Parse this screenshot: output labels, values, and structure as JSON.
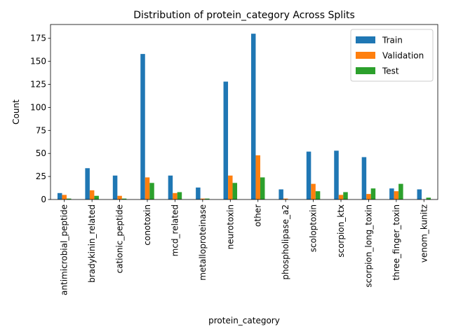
{
  "chart_data": {
    "type": "bar",
    "title": "Distribution of protein_category Across Splits",
    "xlabel": "protein_category",
    "ylabel": "Count",
    "ylim": [
      0,
      190
    ],
    "yticks": [
      0,
      25,
      50,
      75,
      100,
      125,
      150,
      175
    ],
    "legend_position": "top-right",
    "grid": false,
    "categories": [
      "antimicrobial_peptide",
      "bradykinin_related",
      "cationic_peptide",
      "conotoxin",
      "mcd_related",
      "metalloproteinase",
      "neurotoxin",
      "other",
      "phospholipase_a2",
      "scoloptoxin",
      "scorpion_ktx",
      "scorpion_long_toxin",
      "three_finger_toxin",
      "venom_kunitz"
    ],
    "series": [
      {
        "name": "Train",
        "color": "#1f77b4",
        "values": [
          7,
          34,
          26,
          158,
          26,
          13,
          128,
          180,
          11,
          52,
          53,
          46,
          12,
          11
        ]
      },
      {
        "name": "Validation",
        "color": "#ff7f0e",
        "values": [
          5,
          10,
          4,
          24,
          7,
          1,
          26,
          48,
          1,
          17,
          5,
          6,
          9,
          0
        ]
      },
      {
        "name": "Test",
        "color": "#2ca02c",
        "values": [
          1,
          4,
          1,
          18,
          8,
          1,
          18,
          24,
          0,
          9,
          8,
          12,
          17,
          2
        ]
      }
    ]
  }
}
